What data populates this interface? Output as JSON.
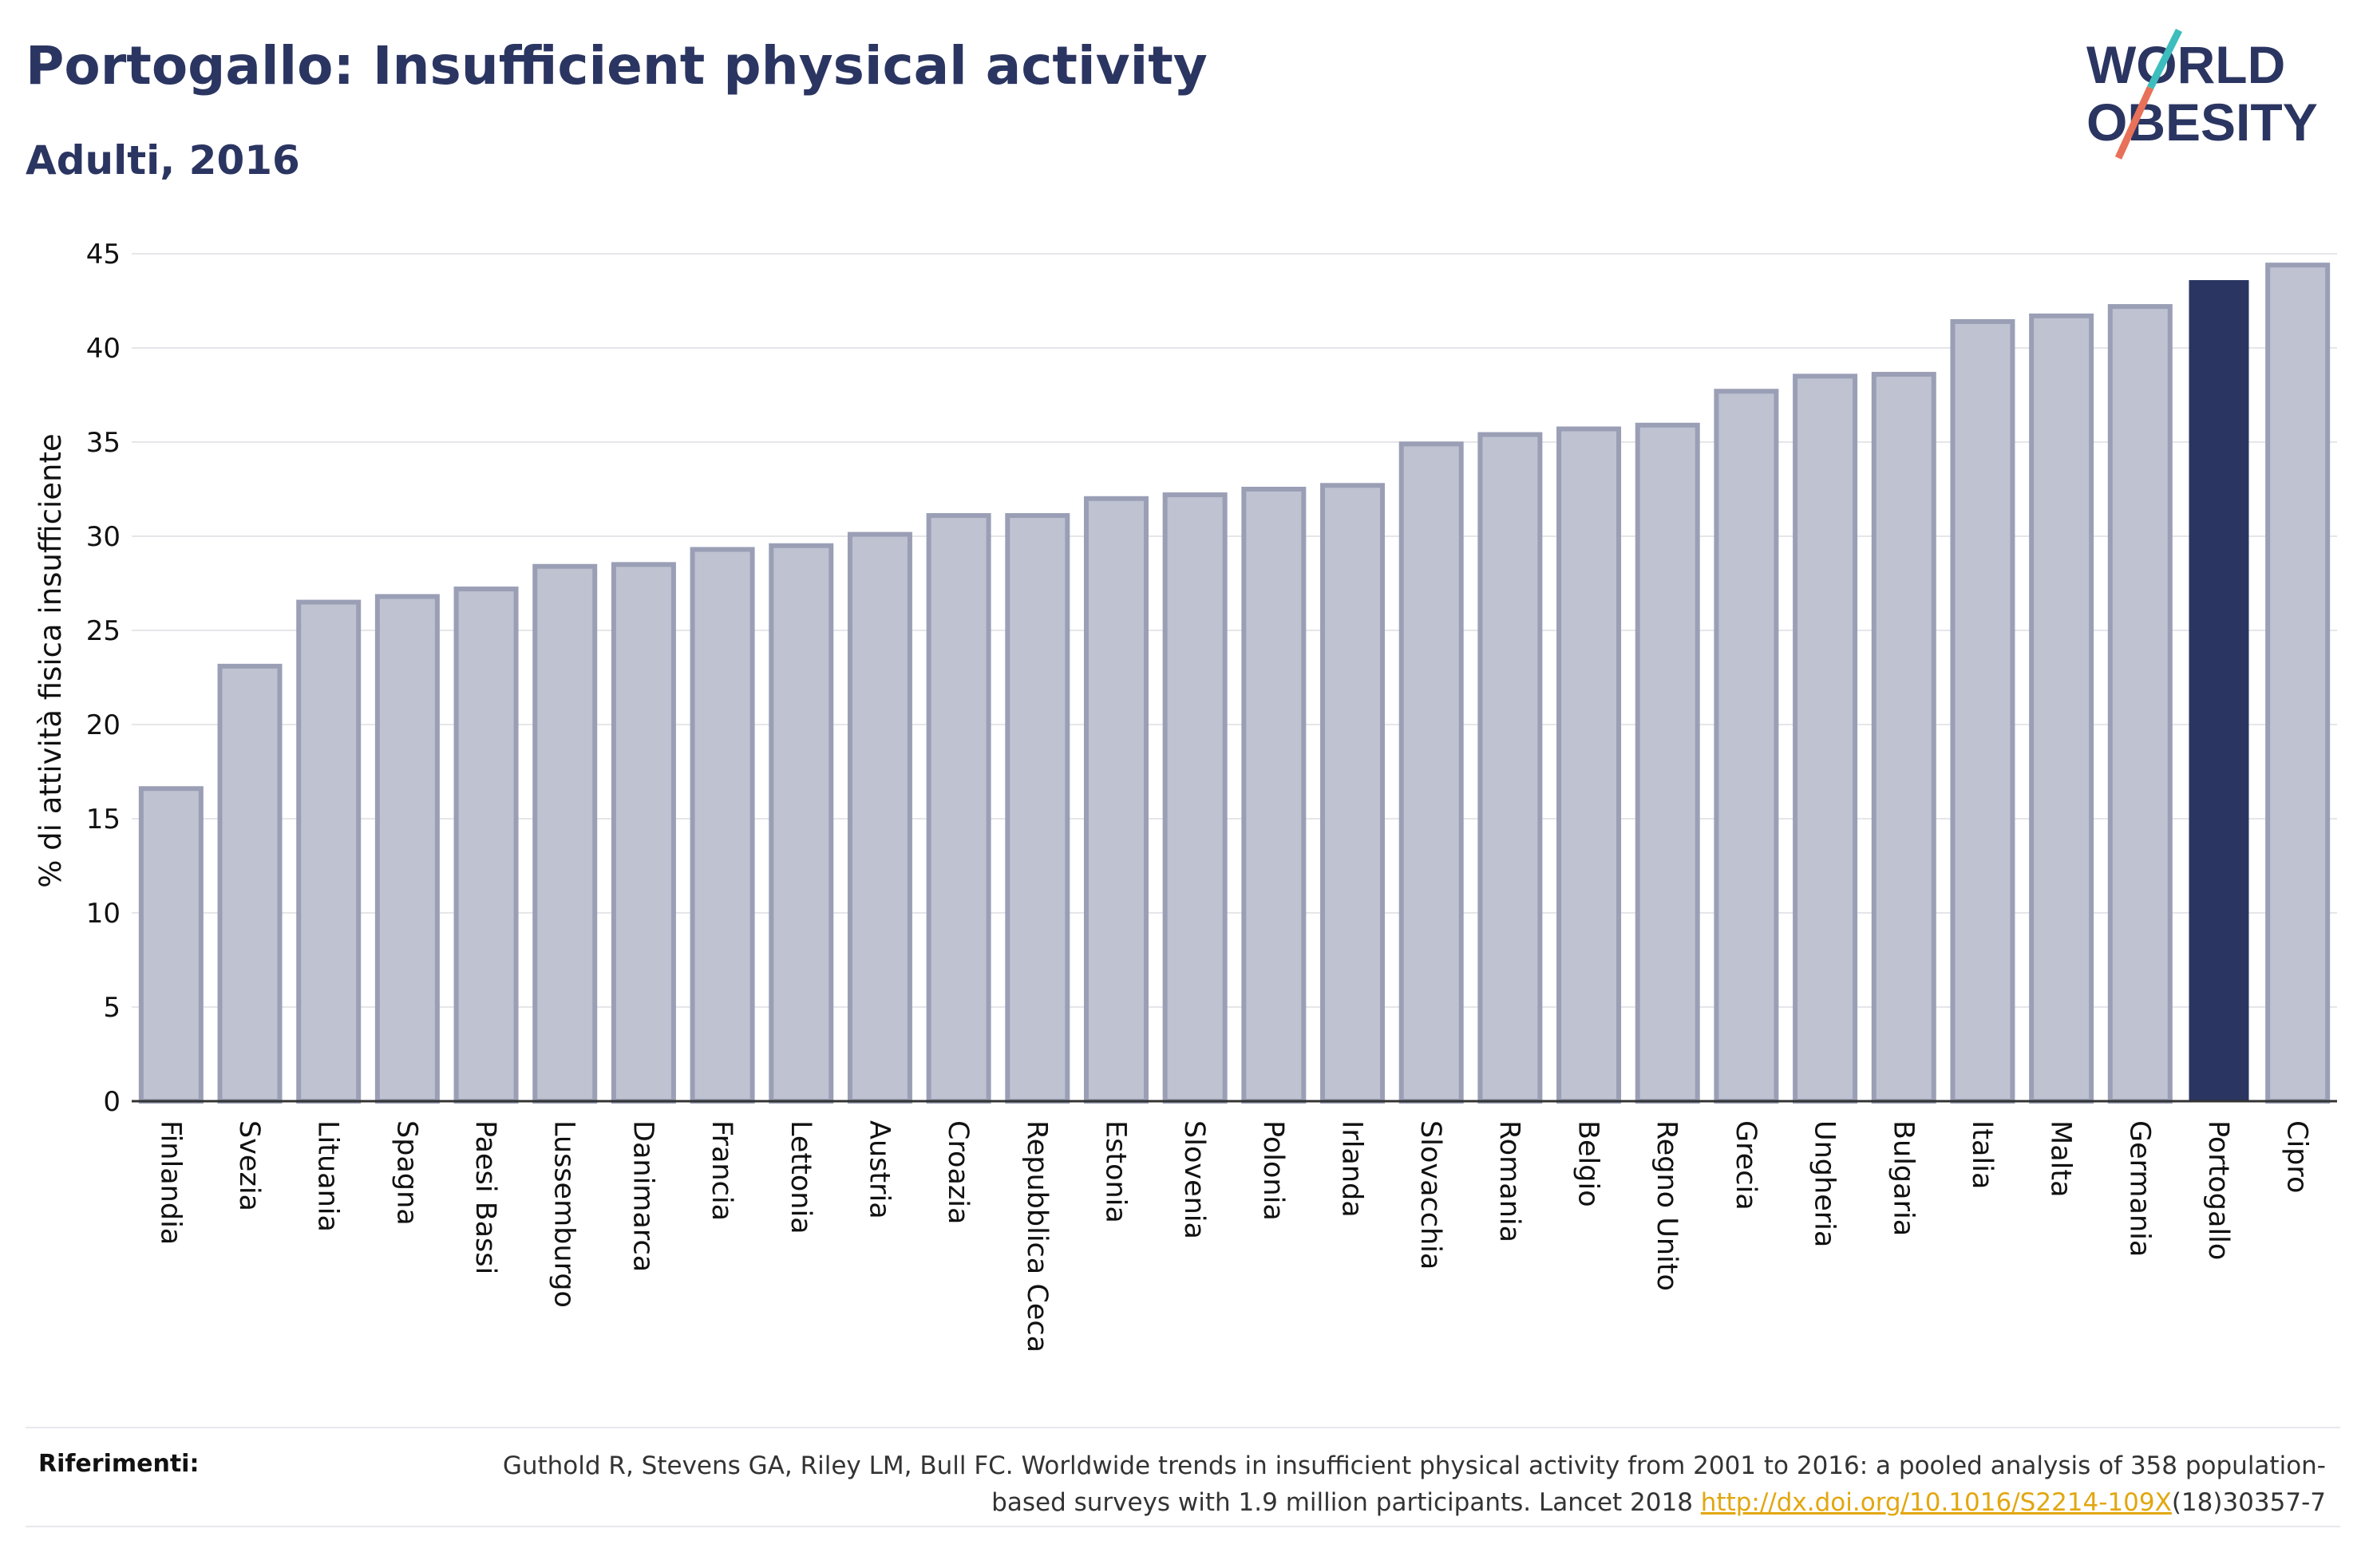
{
  "header": {
    "title": "Portogallo: Insufficient physical activity",
    "subtitle": "Adulti, 2016"
  },
  "logo": {
    "line1": "WORLD",
    "line2": "OBESITY",
    "colors": {
      "text": "#2b3561",
      "slash_teal": "#3dbdbd",
      "slash_coral": "#e8715a"
    }
  },
  "chart_data": {
    "type": "bar",
    "ylabel": "% di attività fisica insufficiente",
    "xlabel": "",
    "ylim": [
      0,
      45
    ],
    "yticks": [
      0,
      5,
      10,
      15,
      20,
      25,
      30,
      35,
      40,
      45
    ],
    "grid": true,
    "highlight": "Portogallo",
    "colors": {
      "bar": "#bfc2d0",
      "bar_edge": "#9a9fb6",
      "highlight": "#2b3561"
    },
    "categories": [
      "Finlandia",
      "Svezia",
      "Lituania",
      "Spagna",
      "Paesi Bassi",
      "Lussemburgo",
      "Danimarca",
      "Francia",
      "Lettonia",
      "Austria",
      "Croazia",
      "Repubblica Ceca",
      "Estonia",
      "Slovenia",
      "Polonia",
      "Irlanda",
      "Slovacchia",
      "Romania",
      "Belgio",
      "Regno Unito",
      "Grecia",
      "Ungheria",
      "Bulgaria",
      "Italia",
      "Malta",
      "Germania",
      "Portogallo",
      "Cipro"
    ],
    "values": [
      16.6,
      23.1,
      26.5,
      26.8,
      27.2,
      28.4,
      28.5,
      29.3,
      29.5,
      30.1,
      31.1,
      31.1,
      32.0,
      32.2,
      32.5,
      32.7,
      34.9,
      35.4,
      35.7,
      35.9,
      37.7,
      38.5,
      38.6,
      41.4,
      41.7,
      42.2,
      43.6,
      44.4
    ]
  },
  "footer": {
    "label": "Riferimenti:",
    "text_before": "Guthold R, Stevens GA, Riley LM, Bull FC. Worldwide trends in insufficient physical activity from 2001 to 2016: a pooled analysis of 358 population-based surveys with 1.9 million participants. Lancet 2018 ",
    "link": "http://dx.doi.org/10.1016/S2214-109X",
    "text_after": "(18)30357-7"
  }
}
